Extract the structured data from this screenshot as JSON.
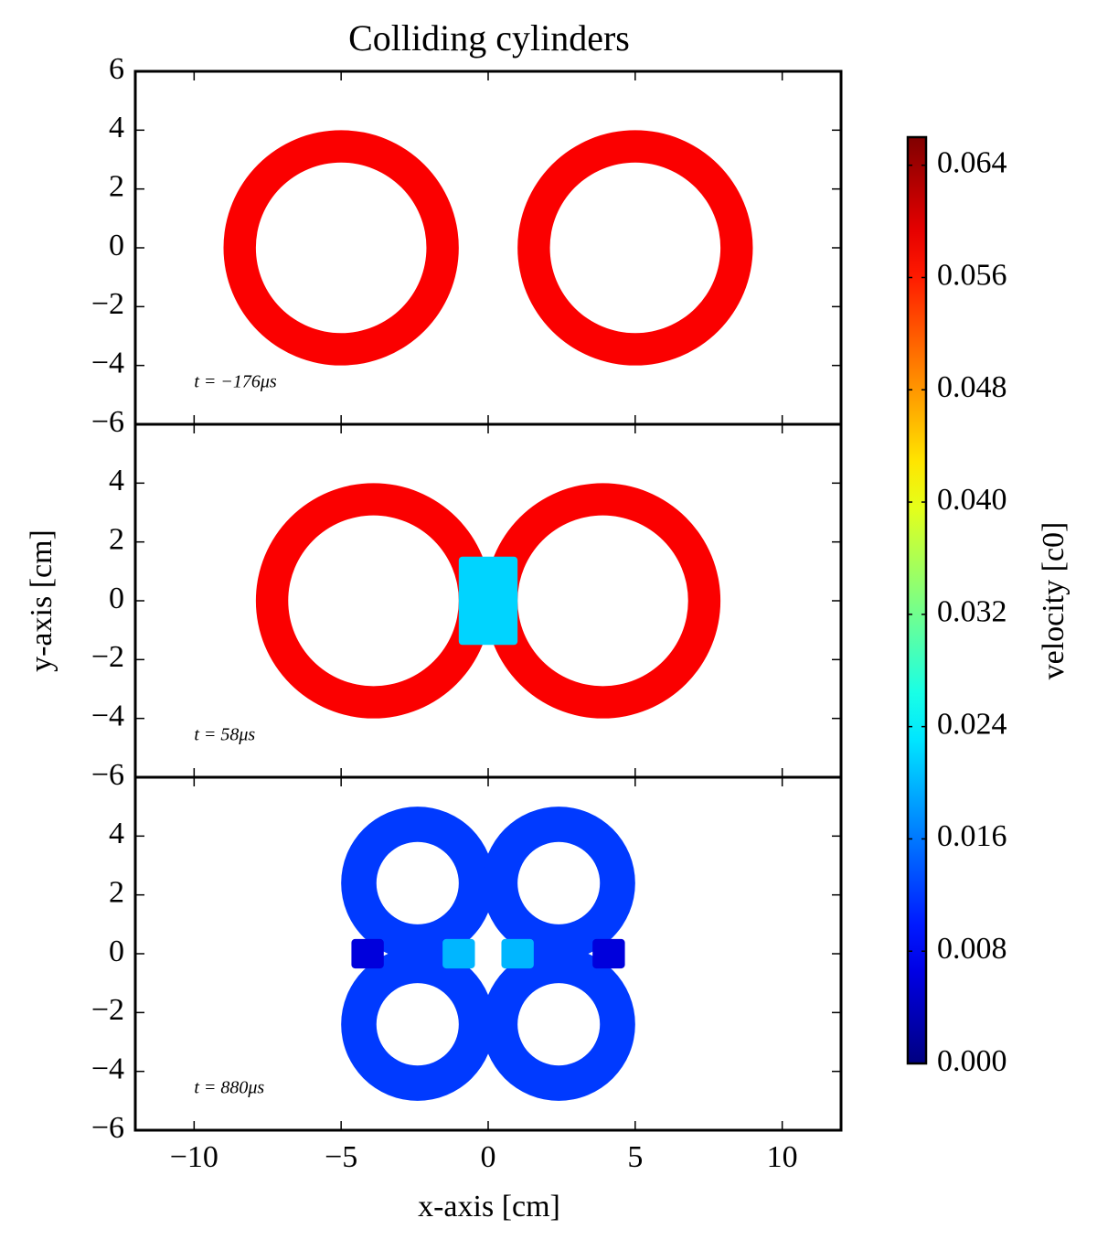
{
  "title": "Colliding cylinders",
  "xlabel": "x-axis [cm]",
  "ylabel": "y-axis [cm]",
  "colorbar": {
    "label": "velocity [c0]",
    "lim": [
      0,
      0.066
    ],
    "ticks": [
      {
        "value": 0,
        "label": "0.000"
      },
      {
        "value": 0.008,
        "label": "0.008"
      },
      {
        "value": 0.016,
        "label": "0.016"
      },
      {
        "value": 0.024,
        "label": "0.024"
      },
      {
        "value": 0.032,
        "label": "0.032"
      },
      {
        "value": 0.04,
        "label": "0.040"
      },
      {
        "value": 0.048,
        "label": "0.048"
      },
      {
        "value": 0.056,
        "label": "0.056"
      },
      {
        "value": 0.064,
        "label": "0.064"
      }
    ]
  },
  "chart_data": [
    {
      "type": "rings",
      "annotation": "t = −176μs",
      "xlim": [
        -12,
        12
      ],
      "xticks": [
        {
          "value": -10,
          "label": "−10"
        },
        {
          "value": -5,
          "label": "−5"
        },
        0,
        5,
        10
      ],
      "ylim": [
        -6,
        6
      ],
      "yticks": [
        {
          "value": -6,
          "label": "−6"
        },
        {
          "value": -4,
          "label": "−4"
        },
        {
          "value": -2,
          "label": "−2"
        },
        0,
        2,
        4,
        6
      ],
      "rings": [
        {
          "x": -5,
          "y": 0,
          "outer": 4,
          "inner": 2.9,
          "value": 0.058
        },
        {
          "x": 5,
          "y": 0,
          "outer": 4,
          "inner": 2.9,
          "value": 0.058
        }
      ],
      "blocks": []
    },
    {
      "type": "rings",
      "annotation": "t = 58μs",
      "xlim": [
        -12,
        12
      ],
      "xticks": [
        {
          "value": -10,
          "label": "−10"
        },
        {
          "value": -5,
          "label": "−5"
        },
        0,
        5,
        10
      ],
      "ylim": [
        -6,
        6
      ],
      "yticks": [
        {
          "value": -6,
          "label": "−6"
        },
        {
          "value": -4,
          "label": "−4"
        },
        {
          "value": -2,
          "label": "−2"
        },
        0,
        2,
        4
      ],
      "rings": [
        {
          "x": -3.9,
          "y": 0,
          "outer": 4,
          "inner": 2.9,
          "value": 0.058
        },
        {
          "x": 3.9,
          "y": 0,
          "outer": 4,
          "inner": 2.9,
          "value": 0.058
        }
      ],
      "blocks": [
        {
          "x": 0,
          "y": 0,
          "width": 2,
          "height": 3,
          "value": 0.022
        }
      ]
    },
    {
      "type": "rings",
      "annotation": "t = 880μs",
      "xlim": [
        -12,
        12
      ],
      "xticks": [
        {
          "value": -10,
          "label": "−10"
        },
        {
          "value": -5,
          "label": "−5"
        },
        0,
        5,
        10
      ],
      "ylim": [
        -6,
        6
      ],
      "yticks": [
        {
          "value": -6,
          "label": "−6"
        },
        {
          "value": -4,
          "label": "−4"
        },
        {
          "value": -2,
          "label": "−2"
        },
        0,
        2,
        4
      ],
      "rings": [
        {
          "x": -2.4,
          "y": 2.4,
          "outer": 2.6,
          "inner": 1.4,
          "value": 0.012
        },
        {
          "x": 2.4,
          "y": 2.4,
          "outer": 2.6,
          "inner": 1.4,
          "value": 0.012
        },
        {
          "x": -2.4,
          "y": -2.4,
          "outer": 2.6,
          "inner": 1.4,
          "value": 0.012
        },
        {
          "x": 2.4,
          "y": -2.4,
          "outer": 2.6,
          "inner": 1.4,
          "value": 0.012
        }
      ],
      "blocks": [
        {
          "x": -4.1,
          "y": 0,
          "width": 1.1,
          "height": 1,
          "value": 0.006
        },
        {
          "x": 4.1,
          "y": 0,
          "width": 1.1,
          "height": 1,
          "value": 0.006
        },
        {
          "x": -1,
          "y": 0,
          "width": 1.1,
          "height": 1,
          "value": 0.02
        },
        {
          "x": 1,
          "y": 0,
          "width": 1.1,
          "height": 1,
          "value": 0.02
        }
      ]
    }
  ]
}
